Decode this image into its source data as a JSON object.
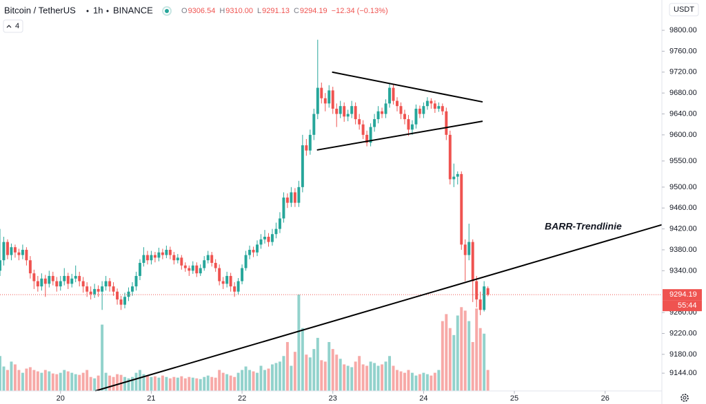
{
  "chart_data": {
    "type": "candlestick",
    "symbol": "Bitcoin / TetherUS",
    "interval": "1h",
    "exchange": "BINANCE",
    "ohlc": [
      {
        "key": "O",
        "value": 9306.54
      },
      {
        "key": "H",
        "value": 9310,
        "label": "9310.00"
      },
      {
        "key": "L",
        "value": 9291.13
      },
      {
        "key": "C",
        "value": 9294.19
      }
    ],
    "change": "−12.34 (−0.13%)",
    "indicators_count": 4,
    "currency": "USDT",
    "last_price": 9294.19,
    "countdown": "55:44",
    "up_color": "#26a69a",
    "down_color": "#ef5350",
    "xlim": [
      0,
      175
    ],
    "xticks": [
      {
        "value": 16,
        "label": "20"
      },
      {
        "value": 40,
        "label": "21"
      },
      {
        "value": 64,
        "label": "22"
      },
      {
        "value": 88,
        "label": "23"
      },
      {
        "value": 112,
        "label": "24"
      },
      {
        "value": 136,
        "label": "25"
      },
      {
        "value": 160,
        "label": "26"
      }
    ],
    "ylim": [
      9110,
      9858
    ],
    "yticks": [
      {
        "value": 9144,
        "label": "9144.00"
      },
      {
        "value": 9180,
        "label": "9180.00"
      },
      {
        "value": 9220,
        "label": "9220.00"
      },
      {
        "value": 9260,
        "label": "9260.00"
      },
      {
        "value": 9340,
        "label": "9340.00"
      },
      {
        "value": 9380,
        "label": "9380.00"
      },
      {
        "value": 9420,
        "label": "9420.00"
      },
      {
        "value": 9460,
        "label": "9460.00"
      },
      {
        "value": 9500,
        "label": "9500.00"
      },
      {
        "value": 9550,
        "label": "9550.00"
      },
      {
        "value": 9600,
        "label": "9600.00"
      },
      {
        "value": 9640,
        "label": "9640.00"
      },
      {
        "value": 9680,
        "label": "9680.00"
      },
      {
        "value": 9720,
        "label": "9720.00"
      },
      {
        "value": 9760,
        "label": "9760.00"
      },
      {
        "value": 9800,
        "label": "9800.00"
      }
    ],
    "candles": [
      [
        9340,
        9420,
        9330,
        9360
      ],
      [
        9360,
        9405,
        9350,
        9395
      ],
      [
        9395,
        9400,
        9362,
        9370
      ],
      [
        9370,
        9392,
        9360,
        9385
      ],
      [
        9385,
        9390,
        9365,
        9375
      ],
      [
        9375,
        9382,
        9360,
        9370
      ],
      [
        9370,
        9390,
        9362,
        9380
      ],
      [
        9380,
        9385,
        9350,
        9360
      ],
      [
        9360,
        9368,
        9325,
        9335
      ],
      [
        9335,
        9342,
        9305,
        9320
      ],
      [
        9320,
        9330,
        9300,
        9310
      ],
      [
        9310,
        9335,
        9302,
        9325
      ],
      [
        9325,
        9332,
        9290,
        9315
      ],
      [
        9315,
        9340,
        9308,
        9330
      ],
      [
        9330,
        9338,
        9312,
        9320
      ],
      [
        9320,
        9328,
        9300,
        9310
      ],
      [
        9310,
        9330,
        9302,
        9320
      ],
      [
        9320,
        9345,
        9312,
        9330
      ],
      [
        9330,
        9336,
        9305,
        9315
      ],
      [
        9315,
        9334,
        9308,
        9325
      ],
      [
        9325,
        9350,
        9318,
        9330
      ],
      [
        9330,
        9338,
        9310,
        9320
      ],
      [
        9320,
        9328,
        9298,
        9310
      ],
      [
        9310,
        9318,
        9290,
        9300
      ],
      [
        9300,
        9310,
        9285,
        9295
      ],
      [
        9295,
        9315,
        9288,
        9305
      ],
      [
        9305,
        9312,
        9290,
        9300
      ],
      [
        9300,
        9320,
        9265,
        9310
      ],
      [
        9310,
        9330,
        9302,
        9320
      ],
      [
        9320,
        9326,
        9300,
        9310
      ],
      [
        9310,
        9318,
        9292,
        9300
      ],
      [
        9300,
        9306,
        9275,
        9285
      ],
      [
        9285,
        9292,
        9265,
        9275
      ],
      [
        9275,
        9298,
        9268,
        9290
      ],
      [
        9290,
        9308,
        9282,
        9300
      ],
      [
        9300,
        9318,
        9292,
        9310
      ],
      [
        9310,
        9338,
        9302,
        9330
      ],
      [
        9330,
        9362,
        9322,
        9355
      ],
      [
        9355,
        9385,
        9348,
        9370
      ],
      [
        9370,
        9378,
        9352,
        9360
      ],
      [
        9360,
        9378,
        9352,
        9370
      ],
      [
        9370,
        9376,
        9356,
        9365
      ],
      [
        9365,
        9384,
        9358,
        9375
      ],
      [
        9375,
        9382,
        9362,
        9370
      ],
      [
        9370,
        9388,
        9364,
        9380
      ],
      [
        9380,
        9386,
        9362,
        9370
      ],
      [
        9370,
        9376,
        9352,
        9360
      ],
      [
        9360,
        9372,
        9354,
        9365
      ],
      [
        9365,
        9370,
        9342,
        9350
      ],
      [
        9350,
        9356,
        9338,
        9345
      ],
      [
        9345,
        9350,
        9330,
        9340
      ],
      [
        9340,
        9358,
        9334,
        9350
      ],
      [
        9350,
        9356,
        9328,
        9335
      ],
      [
        9335,
        9352,
        9330,
        9345
      ],
      [
        9345,
        9368,
        9340,
        9360
      ],
      [
        9360,
        9378,
        9354,
        9370
      ],
      [
        9370,
        9376,
        9348,
        9355
      ],
      [
        9355,
        9362,
        9338,
        9345
      ],
      [
        9345,
        9352,
        9312,
        9320
      ],
      [
        9320,
        9328,
        9305,
        9315
      ],
      [
        9315,
        9338,
        9308,
        9330
      ],
      [
        9330,
        9336,
        9300,
        9310
      ],
      [
        9310,
        9318,
        9290,
        9300
      ],
      [
        9300,
        9326,
        9295,
        9320
      ],
      [
        9320,
        9352,
        9314,
        9345
      ],
      [
        9345,
        9378,
        9340,
        9370
      ],
      [
        9370,
        9388,
        9362,
        9380
      ],
      [
        9380,
        9386,
        9366,
        9375
      ],
      [
        9375,
        9398,
        9368,
        9390
      ],
      [
        9390,
        9410,
        9382,
        9400
      ],
      [
        9400,
        9418,
        9392,
        9405
      ],
      [
        9405,
        9412,
        9386,
        9395
      ],
      [
        9395,
        9420,
        9388,
        9410
      ],
      [
        9410,
        9432,
        9402,
        9420
      ],
      [
        9420,
        9452,
        9412,
        9440
      ],
      [
        9440,
        9490,
        9432,
        9480
      ],
      [
        9480,
        9488,
        9460,
        9470
      ],
      [
        9470,
        9500,
        9462,
        9490
      ],
      [
        9490,
        9498,
        9462,
        9470
      ],
      [
        9470,
        9512,
        9462,
        9500
      ],
      [
        9500,
        9600,
        9490,
        9580
      ],
      [
        9580,
        9592,
        9560,
        9570
      ],
      [
        9570,
        9610,
        9562,
        9600
      ],
      [
        9600,
        9650,
        9590,
        9640
      ],
      [
        9640,
        9782,
        9630,
        9690
      ],
      [
        9690,
        9700,
        9660,
        9670
      ],
      [
        9670,
        9680,
        9645,
        9660
      ],
      [
        9660,
        9695,
        9652,
        9685
      ],
      [
        9685,
        9692,
        9640,
        9650
      ],
      [
        9650,
        9660,
        9615,
        9640
      ],
      [
        9640,
        9665,
        9632,
        9655
      ],
      [
        9655,
        9662,
        9625,
        9635
      ],
      [
        9635,
        9648,
        9626,
        9640
      ],
      [
        9640,
        9665,
        9632,
        9655
      ],
      [
        9655,
        9662,
        9620,
        9630
      ],
      [
        9630,
        9640,
        9610,
        9620
      ],
      [
        9620,
        9628,
        9592,
        9600
      ],
      [
        9600,
        9608,
        9578,
        9585
      ],
      [
        9585,
        9622,
        9578,
        9615
      ],
      [
        9615,
        9640,
        9606,
        9630
      ],
      [
        9630,
        9655,
        9622,
        9645
      ],
      [
        9645,
        9652,
        9632,
        9640
      ],
      [
        9640,
        9668,
        9632,
        9660
      ],
      [
        9660,
        9698,
        9652,
        9690
      ],
      [
        9690,
        9696,
        9658,
        9665
      ],
      [
        9665,
        9672,
        9645,
        9655
      ],
      [
        9655,
        9662,
        9630,
        9640
      ],
      [
        9640,
        9648,
        9620,
        9630
      ],
      [
        9630,
        9638,
        9598,
        9610
      ],
      [
        9610,
        9628,
        9600,
        9620
      ],
      [
        9620,
        9658,
        9612,
        9650
      ],
      [
        9650,
        9656,
        9632,
        9640
      ],
      [
        9640,
        9662,
        9632,
        9655
      ],
      [
        9655,
        9672,
        9648,
        9665
      ],
      [
        9665,
        9670,
        9650,
        9660
      ],
      [
        9660,
        9666,
        9642,
        9650
      ],
      [
        9650,
        9662,
        9644,
        9655
      ],
      [
        9655,
        9660,
        9638,
        9645
      ],
      [
        9645,
        9652,
        9590,
        9600
      ],
      [
        9600,
        9608,
        9505,
        9515
      ],
      [
        9515,
        9545,
        9500,
        9520
      ],
      [
        9520,
        9530,
        9505,
        9525
      ],
      [
        9525,
        9530,
        9380,
        9390
      ],
      [
        9390,
        9400,
        9320,
        9370
      ],
      [
        9370,
        9430,
        9360,
        9395
      ],
      [
        9395,
        9400,
        9280,
        9320
      ],
      [
        9320,
        9330,
        9270,
        9285
      ],
      [
        9285,
        9300,
        9255,
        9265
      ],
      [
        9265,
        9320,
        9262,
        9310
      ],
      [
        9306.54,
        9310,
        9291.13,
        9294.19
      ]
    ],
    "volumes": [
      500,
      350,
      300,
      420,
      380,
      300,
      260,
      320,
      340,
      300,
      280,
      260,
      300,
      280,
      250,
      240,
      260,
      300,
      280,
      260,
      240,
      230,
      260,
      300,
      200,
      180,
      220,
      950,
      260,
      220,
      200,
      240,
      230,
      200,
      180,
      200,
      260,
      300,
      240,
      220,
      200,
      210,
      190,
      220,
      200,
      180,
      200,
      190,
      210,
      180,
      200,
      190,
      180,
      170,
      200,
      220,
      200,
      190,
      300,
      260,
      240,
      220,
      200,
      260,
      300,
      350,
      300,
      280,
      260,
      360,
      300,
      320,
      380,
      400,
      420,
      500,
      700,
      360,
      560,
      1380,
      900,
      520,
      480,
      600,
      760,
      440,
      420,
      700,
      600,
      520,
      460,
      380,
      360,
      340,
      420,
      500,
      380,
      360,
      420,
      400,
      360,
      380,
      420,
      500,
      360,
      300,
      280,
      260,
      300,
      260,
      220,
      240,
      260,
      240,
      220,
      260,
      300,
      1000,
      1100,
      900,
      800,
      1080,
      1200,
      1150,
      1000,
      700,
      1180,
      900,
      820,
      300
    ],
    "trendlines": [
      {
        "x": [
          87.8,
          127.6
        ],
        "y": [
          9720,
          9663
        ]
      },
      {
        "x": [
          83.8,
          127.6
        ],
        "y": [
          9571,
          9626
        ]
      },
      {
        "x": [
          25.2,
          175
        ],
        "y": [
          9110,
          9428
        ]
      }
    ],
    "annotation": "BARR-Trendlinie"
  }
}
